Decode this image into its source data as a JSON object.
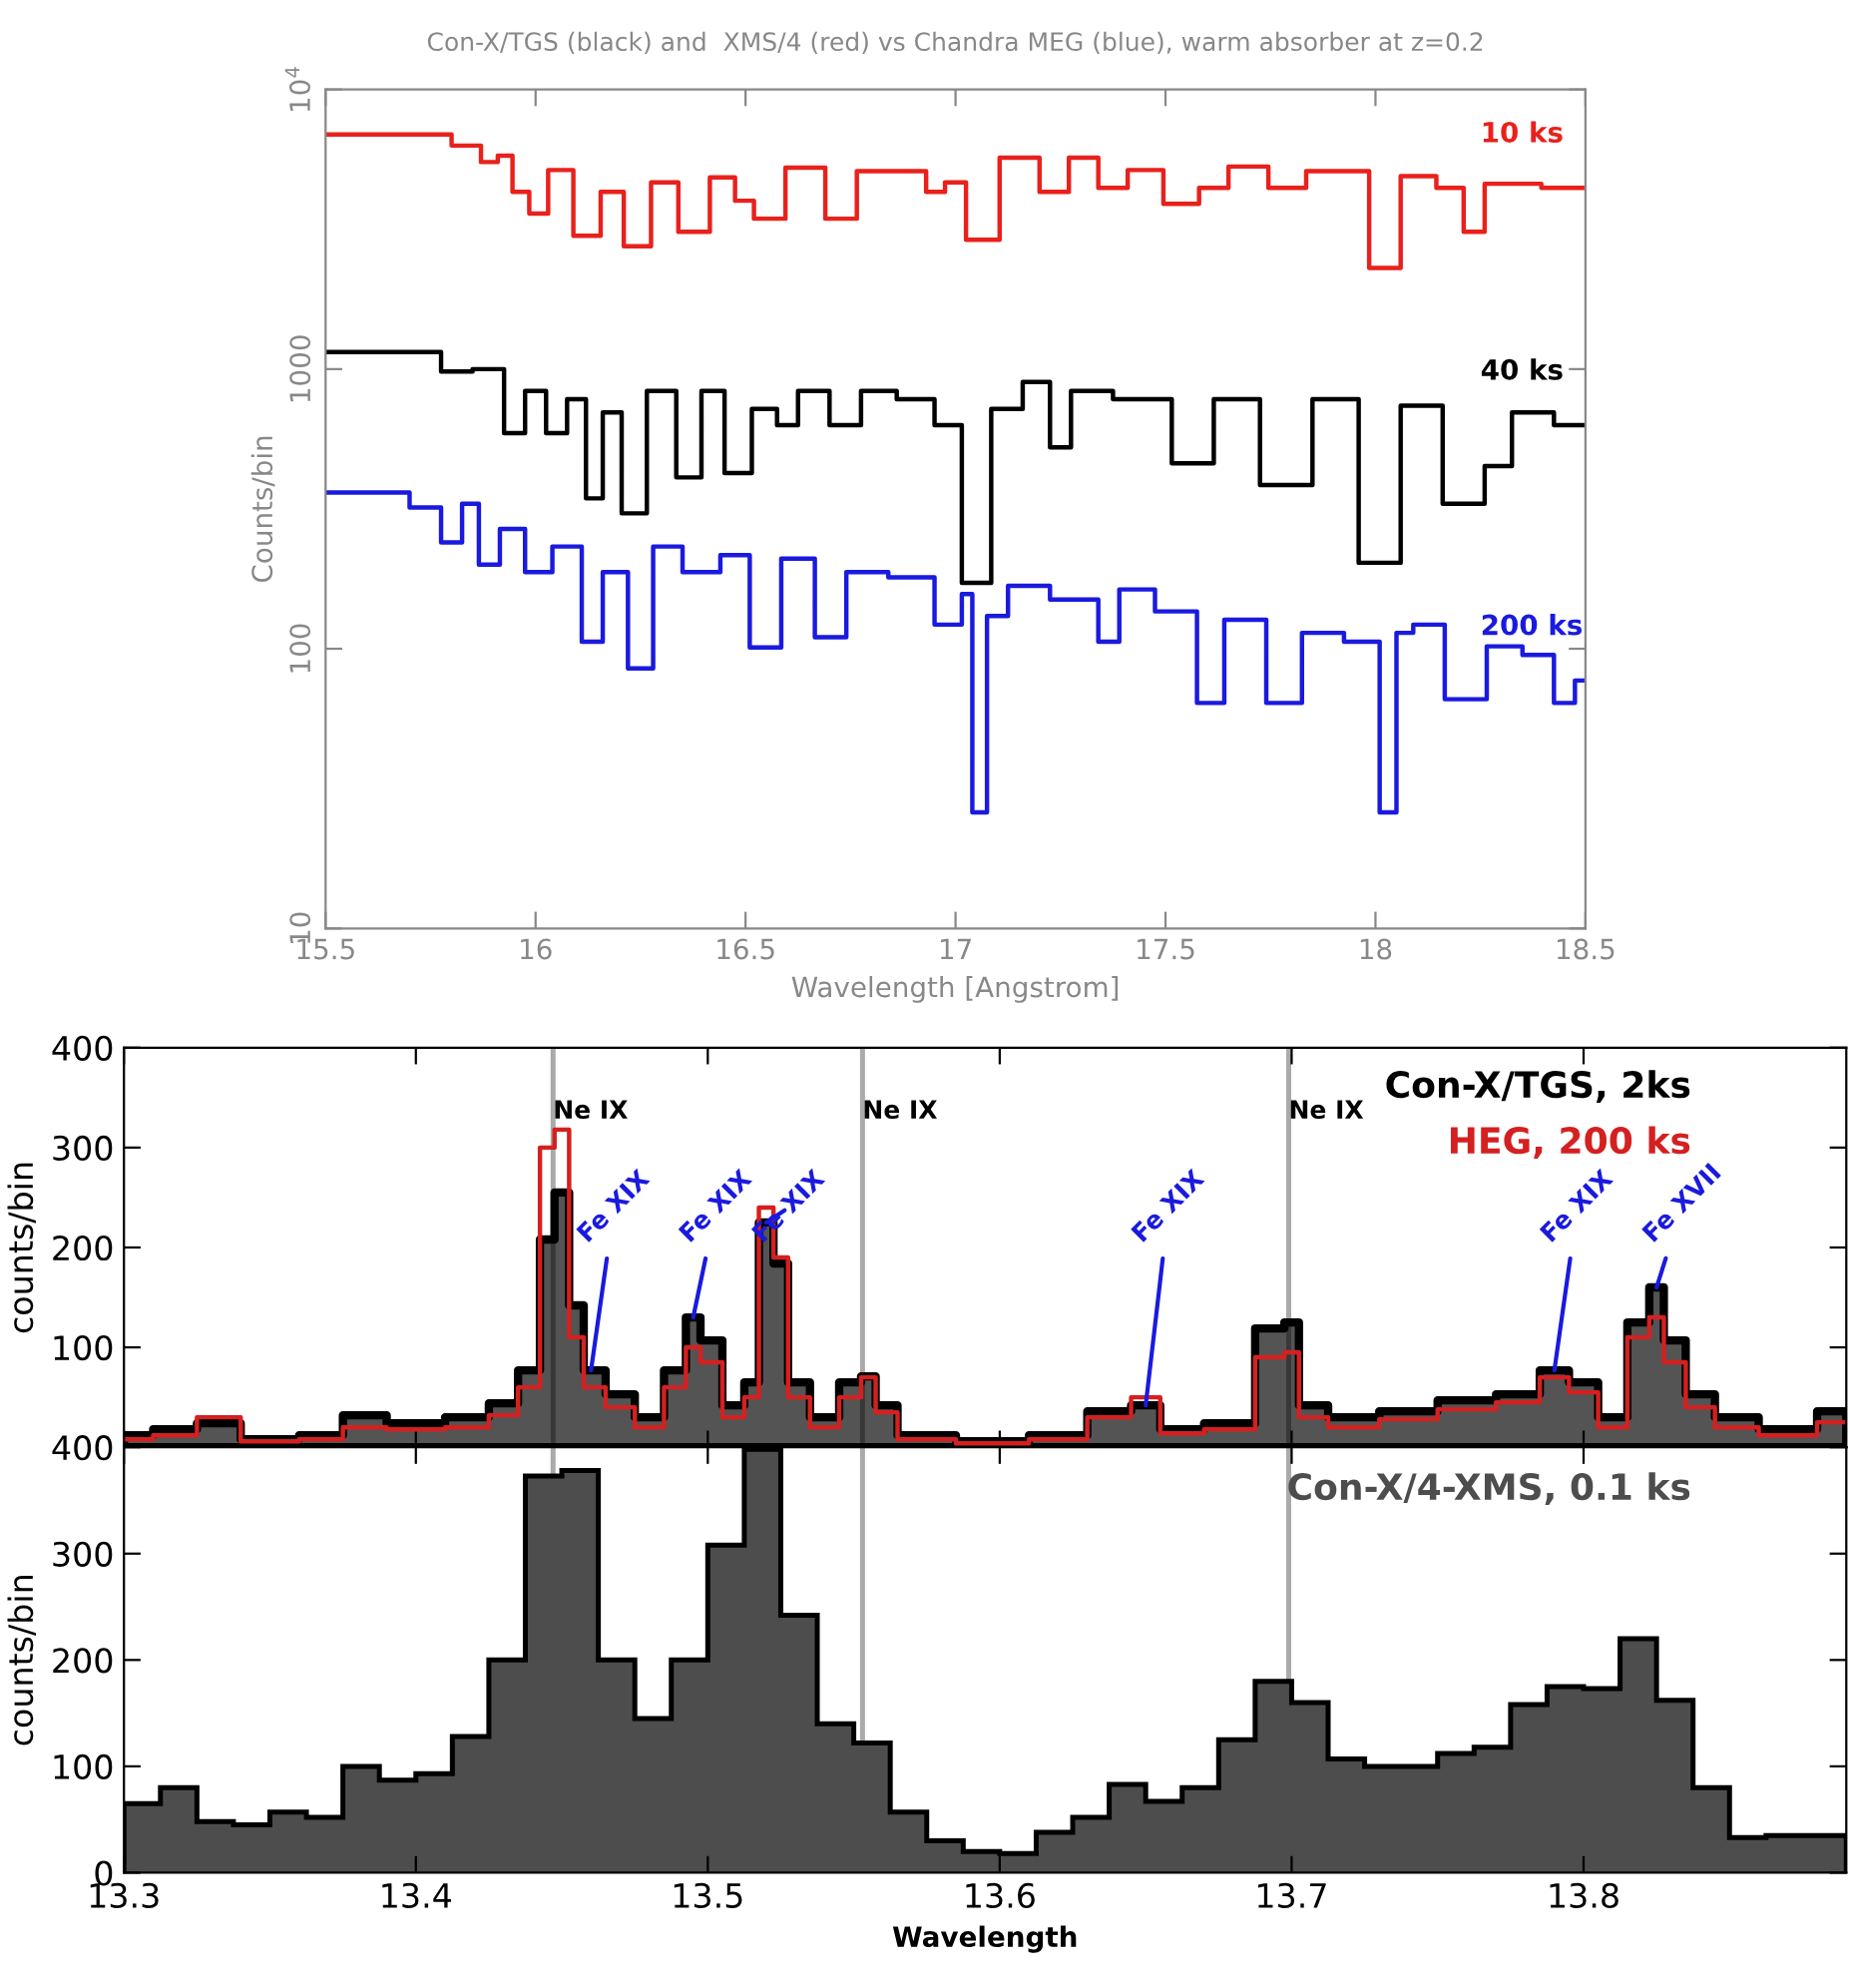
{
  "chart_data": [
    {
      "type": "step",
      "title": "Con-X/TGS (black) and  XMS/4 (red) vs Chandra MEG (blue), warm absorber at z=0.2",
      "xlabel": "Wavelength [Angstrom]",
      "ylabel": "Counts/bin",
      "log": "y",
      "xlim": [
        15.5,
        18.5
      ],
      "xticks": [
        15.5,
        16,
        16.5,
        17,
        17.5,
        18,
        18.5
      ],
      "ylim": [
        10,
        10000
      ],
      "yticks": [
        10,
        100,
        1000,
        {
          "value": 10000,
          "label": "10$^{4}$"
        }
      ],
      "series": [
        {
          "name": "10 ks",
          "color": "#e8211c",
          "x": [
            15.5,
            15.75,
            15.85,
            15.89,
            15.93,
            15.96,
            16.01,
            16.05,
            16.13,
            16.18,
            16.24,
            16.31,
            16.37,
            16.46,
            16.49,
            16.55,
            16.64,
            16.74,
            16.79,
            16.91,
            16.95,
            17.0,
            17.05,
            17.16,
            17.24,
            17.3,
            17.38,
            17.44,
            17.55,
            17.61,
            17.69,
            17.8,
            17.87,
            17.95,
            18.02,
            18.1,
            18.19,
            18.23,
            18.29,
            18.5
          ],
          "values": [
            6900,
            6900,
            6300,
            5500,
            5800,
            4300,
            3600,
            5150,
            3000,
            4300,
            2750,
            4650,
            3100,
            4850,
            4000,
            3450,
            5250,
            3450,
            5100,
            5100,
            4300,
            4650,
            2900,
            5700,
            4300,
            5700,
            4450,
            5150,
            3900,
            4450,
            5300,
            4450,
            5100,
            5100,
            2300,
            4900,
            4450,
            3100,
            4600,
            4450
          ]
        },
        {
          "name": "40 ks",
          "color": "#000000",
          "x": [
            15.5,
            15.75,
            15.8,
            15.9,
            15.95,
            16.0,
            16.05,
            16.1,
            16.14,
            16.18,
            16.23,
            16.3,
            16.37,
            16.42,
            16.48,
            16.55,
            16.6,
            16.65,
            16.75,
            16.8,
            16.92,
            16.98,
            17.05,
            17.12,
            17.2,
            17.25,
            17.3,
            17.45,
            17.58,
            17.65,
            17.8,
            17.9,
            18.02,
            18.1,
            18.22,
            18.3,
            18.35,
            18.5
          ],
          "values": [
            1150,
            1150,
            980,
            1000,
            590,
            835,
            590,
            780,
            345,
            700,
            305,
            835,
            410,
            835,
            425,
            720,
            630,
            835,
            630,
            835,
            780,
            630,
            172,
            720,
            900,
            525,
            835,
            780,
            460,
            780,
            385,
            780,
            203,
            740,
            330,
            450,
            700,
            630
          ]
        },
        {
          "name": "200 ks",
          "color": "#1a1adf",
          "x": [
            15.5,
            15.65,
            15.75,
            15.8,
            15.85,
            15.88,
            15.95,
            16.0,
            16.08,
            16.14,
            16.18,
            16.26,
            16.3,
            16.4,
            16.48,
            16.54,
            16.63,
            16.7,
            16.78,
            16.9,
            17.0,
            17.03,
            17.05,
            17.1,
            17.15,
            17.3,
            17.38,
            17.4,
            17.55,
            17.6,
            17.68,
            17.8,
            17.85,
            18.0,
            18.02,
            18.08,
            18.1,
            18.23,
            18.3,
            18.4,
            18.45,
            18.5
          ],
          "values": [
            362,
            362,
            320,
            240,
            330,
            200,
            268,
            188,
            232,
            106,
            188,
            85,
            232,
            188,
            216,
            101,
            210,
            110,
            188,
            180,
            122,
            157,
            26,
            131,
            168,
            150,
            106,
            163,
            136,
            64,
            127,
            64,
            114,
            106,
            26,
            114,
            122,
            66,
            102,
            95,
            64,
            77
          ]
        }
      ]
    },
    {
      "type": "area",
      "ylabel": "counts/bin",
      "tick_labels": "y",
      "legend": "top right",
      "xlim": [
        13.3,
        13.89
      ],
      "ylim": [
        0,
        400
      ],
      "yticks": [
        {
          "value": 0,
          "label": null
        },
        100,
        200,
        300,
        400
      ],
      "x": [
        13.3,
        13.32,
        13.33,
        13.35,
        13.37,
        13.38,
        13.4,
        13.42,
        13.43,
        13.44,
        13.445,
        13.45,
        13.455,
        13.46,
        13.47,
        13.48,
        13.49,
        13.495,
        13.5,
        13.51,
        13.515,
        13.52,
        13.525,
        13.53,
        13.54,
        13.55,
        13.555,
        13.56,
        13.57,
        13.6,
        13.62,
        13.64,
        13.65,
        13.66,
        13.68,
        13.695,
        13.7,
        13.705,
        13.72,
        13.74,
        13.76,
        13.78,
        13.79,
        13.8,
        13.81,
        13.82,
        13.825,
        13.83,
        13.84,
        13.85,
        13.87,
        13.89
      ],
      "series": [
        {
          "name": "Con-X/TGS, 2ks",
          "type": "area",
          "color": "#000000",
          "values": [
            12,
            18,
            24,
            8,
            12,
            32,
            24,
            30,
            44,
            77,
            208,
            255,
            142,
            77,
            53,
            30,
            77,
            130,
            107,
            42,
            65,
            225,
            184,
            65,
            30,
            65,
            71,
            42,
            12,
            6,
            12,
            36,
            42,
            18,
            24,
            119,
            125,
            42,
            30,
            36,
            47,
            53,
            77,
            65,
            30,
            125,
            160,
            107,
            53,
            30,
            18,
            36
          ]
        },
        {
          "name": "HEG, 200 ks",
          "type": "step",
          "color": "#d42020",
          "values": [
            8,
            12,
            30,
            6,
            8,
            20,
            18,
            20,
            32,
            60,
            300,
            318,
            110,
            60,
            40,
            20,
            60,
            100,
            85,
            30,
            50,
            240,
            190,
            50,
            20,
            50,
            70,
            35,
            8,
            4,
            8,
            30,
            50,
            14,
            18,
            90,
            95,
            30,
            20,
            28,
            38,
            45,
            70,
            55,
            20,
            110,
            130,
            85,
            40,
            20,
            12,
            25
          ]
        }
      ],
      "ref_lines": [
        {
          "axis": "x",
          "value": 13.447,
          "label": "Ne IX",
          "color": "#aaaaaa"
        },
        {
          "axis": "x",
          "value": 13.553,
          "label": "Ne IX",
          "color": "#aaaaaa"
        },
        {
          "axis": "x",
          "value": 13.699,
          "label": "Ne IX",
          "color": "#aaaaaa"
        }
      ],
      "annotations": [
        {
          "text": "Fe XIX",
          "x": 13.46,
          "y": 77
        },
        {
          "text": "Fe XIX",
          "x": 13.495,
          "y": 130
        },
        {
          "text": "Fe XIX",
          "x": 13.52,
          "y": 225
        },
        {
          "text": "Fe XIX",
          "x": 13.65,
          "y": 42
        },
        {
          "text": "Fe XIX",
          "x": 13.79,
          "y": 77
        },
        {
          "text": "Fe XVII",
          "x": 13.825,
          "y": 160
        }
      ]
    },
    {
      "type": "histogram",
      "xlabel": "Wavelength",
      "ylabel": "counts/bin",
      "legend": "top right",
      "xlim": [
        13.3,
        13.89
      ],
      "xticks": [
        13.3,
        13.4,
        13.5,
        13.6,
        13.7,
        13.8
      ],
      "ylim": [
        0,
        400
      ],
      "yticks": [
        0,
        100,
        200,
        300,
        400
      ],
      "bins": [
        13.3,
        13.3125,
        13.325,
        13.3375,
        13.35,
        13.3625,
        13.375,
        13.3875,
        13.4,
        13.4125,
        13.425,
        13.4375,
        13.45,
        13.4625,
        13.475,
        13.4875,
        13.5,
        13.5125,
        13.525,
        13.5375,
        13.55,
        13.5625,
        13.575,
        13.5875,
        13.6,
        13.6125,
        13.625,
        13.6375,
        13.65,
        13.6625,
        13.675,
        13.6875,
        13.7,
        13.7125,
        13.725,
        13.7375,
        13.75,
        13.7625,
        13.775,
        13.7875,
        13.8,
        13.8125,
        13.825,
        13.8375,
        13.85,
        13.8625,
        13.89
      ],
      "series": [
        {
          "name": "Con-X/4-XMS, 0.1 ks",
          "color": "#4d4d4d",
          "values": [
            65,
            80,
            48,
            45,
            57,
            52,
            100,
            87,
            93,
            128,
            200,
            373,
            378,
            200,
            145,
            200,
            308,
            398,
            242,
            140,
            122,
            57,
            30,
            20,
            18,
            38,
            52,
            83,
            67,
            80,
            125,
            180,
            160,
            107,
            100,
            100,
            112,
            118,
            158,
            175,
            173,
            220,
            162,
            80,
            33,
            35
          ]
        }
      ],
      "ref_lines": [
        {
          "axis": "x",
          "value": 13.447,
          "label": null,
          "color": "#aaaaaa"
        },
        {
          "axis": "x",
          "value": 13.553,
          "label": null,
          "color": "#aaaaaa"
        },
        {
          "axis": "x",
          "value": 13.699,
          "label": null,
          "color": "#aaaaaa"
        }
      ]
    }
  ]
}
